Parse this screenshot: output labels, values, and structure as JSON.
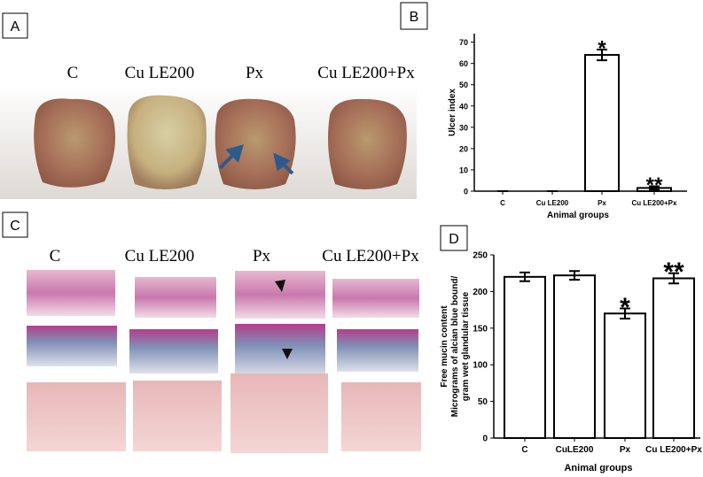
{
  "panels": {
    "a": {
      "label": "A",
      "groups": [
        "C",
        "Cu LE200",
        "Px",
        "Cu LE200+Px"
      ]
    },
    "c": {
      "label": "C",
      "groups": [
        "C",
        "Cu LE200",
        "Px",
        "Cu LE200+Px"
      ]
    }
  },
  "chart_data": [
    {
      "type": "bar",
      "panel_label": "B",
      "y_label": "Ulcer index",
      "x_label": "Animal groups",
      "categories": [
        "C",
        "Cu LE200",
        "Px",
        "Cu LE200+Px"
      ],
      "values": [
        0,
        0,
        64,
        1.5
      ],
      "errors": [
        0,
        0,
        2.5,
        0.8
      ],
      "annotations": [
        {
          "text": "*",
          "x": "Px"
        },
        {
          "text": "**",
          "x": "Cu LE200+Px"
        }
      ],
      "color": "#ffffff",
      "ylim": [
        0,
        74
      ],
      "yticks": [
        0,
        10,
        20,
        30,
        40,
        50,
        60,
        70
      ]
    },
    {
      "type": "bar",
      "panel_label": "D",
      "y_label": [
        "Free mucin content",
        "Micrograms of alcian blue bound/",
        "gram wet glandular tissue"
      ],
      "x_label": "Animal groups",
      "categories": [
        "C",
        "CuLE200",
        "Px",
        "Cu LE200+Px"
      ],
      "values": [
        220,
        222,
        170,
        218
      ],
      "errors": [
        6,
        6,
        7,
        7
      ],
      "annotations": [
        {
          "text": "*",
          "x": "Px"
        },
        {
          "text": "**",
          "x": "Cu LE200+Px"
        }
      ],
      "color": "#ffffff",
      "ylim": [
        0,
        250
      ],
      "yticks": [
        0,
        50,
        100,
        150,
        200,
        250
      ]
    }
  ]
}
